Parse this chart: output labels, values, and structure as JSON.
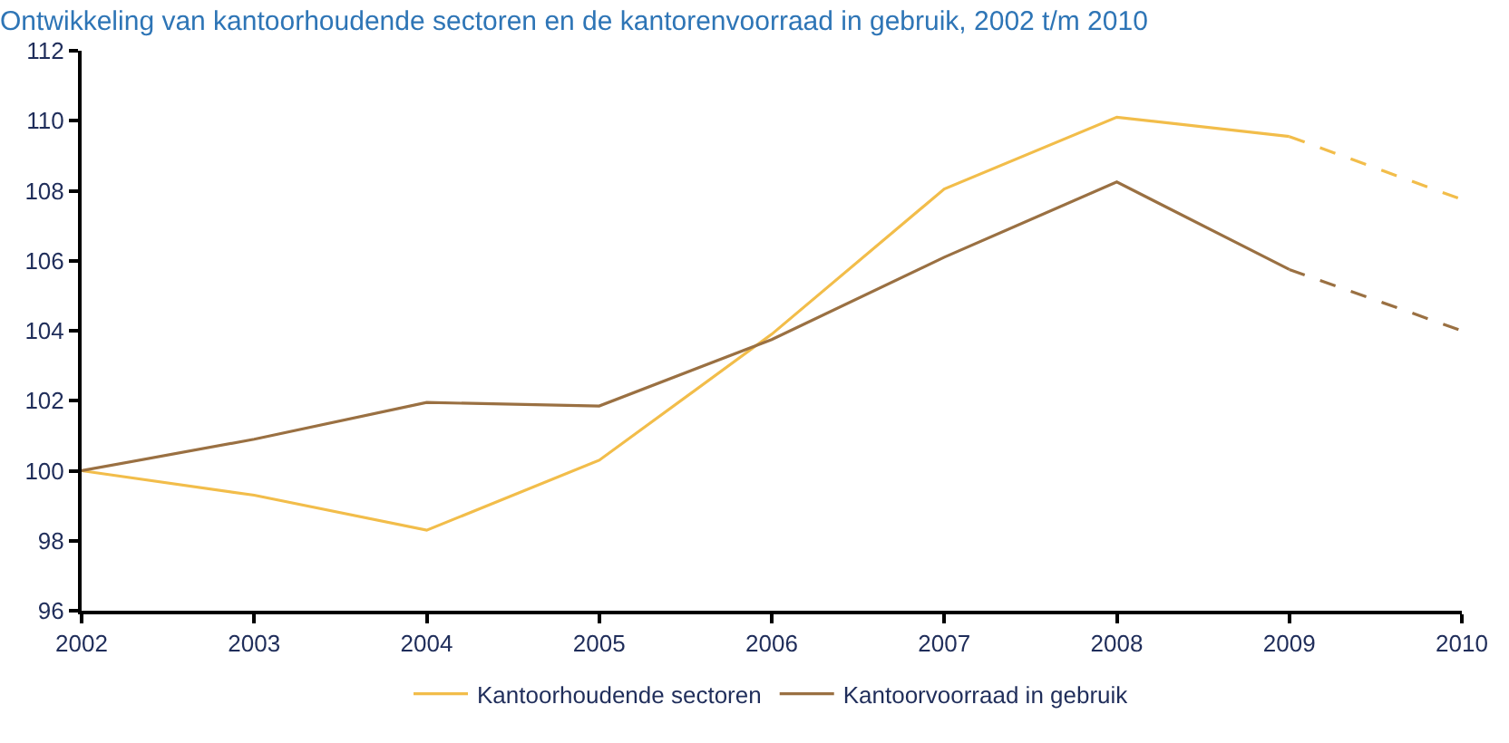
{
  "chart_data": {
    "type": "line",
    "title": "Ontwikkeling van kantoorhoudende sectoren en de kantorenvoorraad in gebruik, 2002 t/m 2010",
    "x": [
      2002,
      2003,
      2004,
      2005,
      2006,
      2007,
      2008,
      2009,
      2010
    ],
    "series": [
      {
        "name": "Kantoorhoudende sectoren",
        "color": "#f2bd4a",
        "values": [
          100,
          99.3,
          98.3,
          100.3,
          103.9,
          108.05,
          110.1,
          109.55,
          null
        ]
      },
      {
        "name": "Kantoorvoorraad in gebruik",
        "color": "#9a7042",
        "values": [
          100,
          100.9,
          101.95,
          101.85,
          103.75,
          106.1,
          108.25,
          105.75,
          null
        ]
      },
      {
        "color": "#f2bd4a",
        "values": [
          null,
          null,
          null,
          null,
          null,
          null,
          null,
          109.55,
          107.75
        ],
        "line_style": "dashed"
      },
      {
        "color": "#9a7042",
        "values": [
          null,
          null,
          null,
          null,
          null,
          null,
          null,
          105.75,
          104.0
        ],
        "line_style": "dashed"
      }
    ],
    "xlim": [
      2002,
      2010
    ],
    "xticks": [
      2002,
      2003,
      2004,
      2005,
      2006,
      2007,
      2008,
      2009,
      2010
    ],
    "ylim": [
      96,
      112
    ],
    "yticks": [
      96,
      98,
      100,
      102,
      104,
      106,
      108,
      110,
      112
    ],
    "grid": false,
    "legend": "bottom",
    "marker": "none",
    "line_style": "solid"
  }
}
